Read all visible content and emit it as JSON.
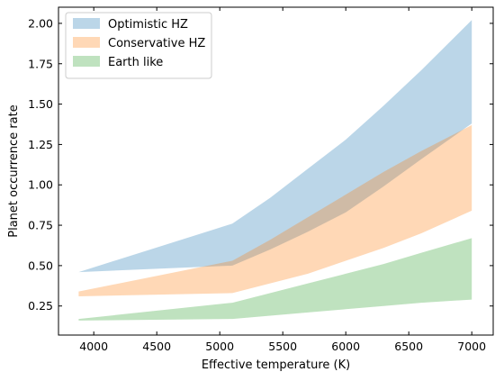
{
  "chart_data": {
    "type": "area",
    "title": "",
    "xlabel": "Effective temperature (K)",
    "ylabel": "Planet occurrence rate",
    "xlim": [
      3720,
      7170
    ],
    "ylim": [
      0.07,
      2.1
    ],
    "xticks": [
      4000,
      4500,
      5000,
      5500,
      6000,
      6500,
      7000
    ],
    "yticks": [
      0.25,
      0.5,
      0.75,
      1.0,
      1.25,
      1.5,
      1.75,
      2.0
    ],
    "xtick_labels": [
      "4000",
      "4500",
      "5000",
      "5500",
      "6000",
      "6500",
      "7000"
    ],
    "ytick_labels": [
      "0.25",
      "0.50",
      "0.75",
      "1.00",
      "1.25",
      "1.50",
      "1.75",
      "2.00"
    ],
    "grid": false,
    "legend_position": "top-left",
    "series": [
      {
        "name": "Optimistic HZ",
        "color": "#1f77b4",
        "x": [
          3880,
          5100,
          5400,
          5700,
          6000,
          6300,
          6600,
          7000
        ],
        "lower": [
          0.46,
          0.5,
          0.6,
          0.71,
          0.83,
          0.99,
          1.16,
          1.38
        ],
        "upper": [
          0.46,
          0.76,
          0.92,
          1.1,
          1.28,
          1.49,
          1.71,
          2.02
        ]
      },
      {
        "name": "Conservative HZ",
        "color": "#ff7f0e",
        "x": [
          3880,
          5100,
          5400,
          5700,
          6000,
          6300,
          6600,
          7000
        ],
        "lower": [
          0.31,
          0.33,
          0.39,
          0.45,
          0.53,
          0.61,
          0.7,
          0.84
        ],
        "upper": [
          0.34,
          0.53,
          0.66,
          0.8,
          0.94,
          1.08,
          1.21,
          1.37
        ]
      },
      {
        "name": "Earth like",
        "color": "#2ca02c",
        "x": [
          3880,
          5100,
          5400,
          5700,
          6000,
          6300,
          6600,
          7000
        ],
        "lower": [
          0.16,
          0.17,
          0.19,
          0.21,
          0.23,
          0.25,
          0.27,
          0.29
        ],
        "upper": [
          0.17,
          0.27,
          0.33,
          0.39,
          0.45,
          0.51,
          0.58,
          0.67
        ]
      }
    ]
  }
}
